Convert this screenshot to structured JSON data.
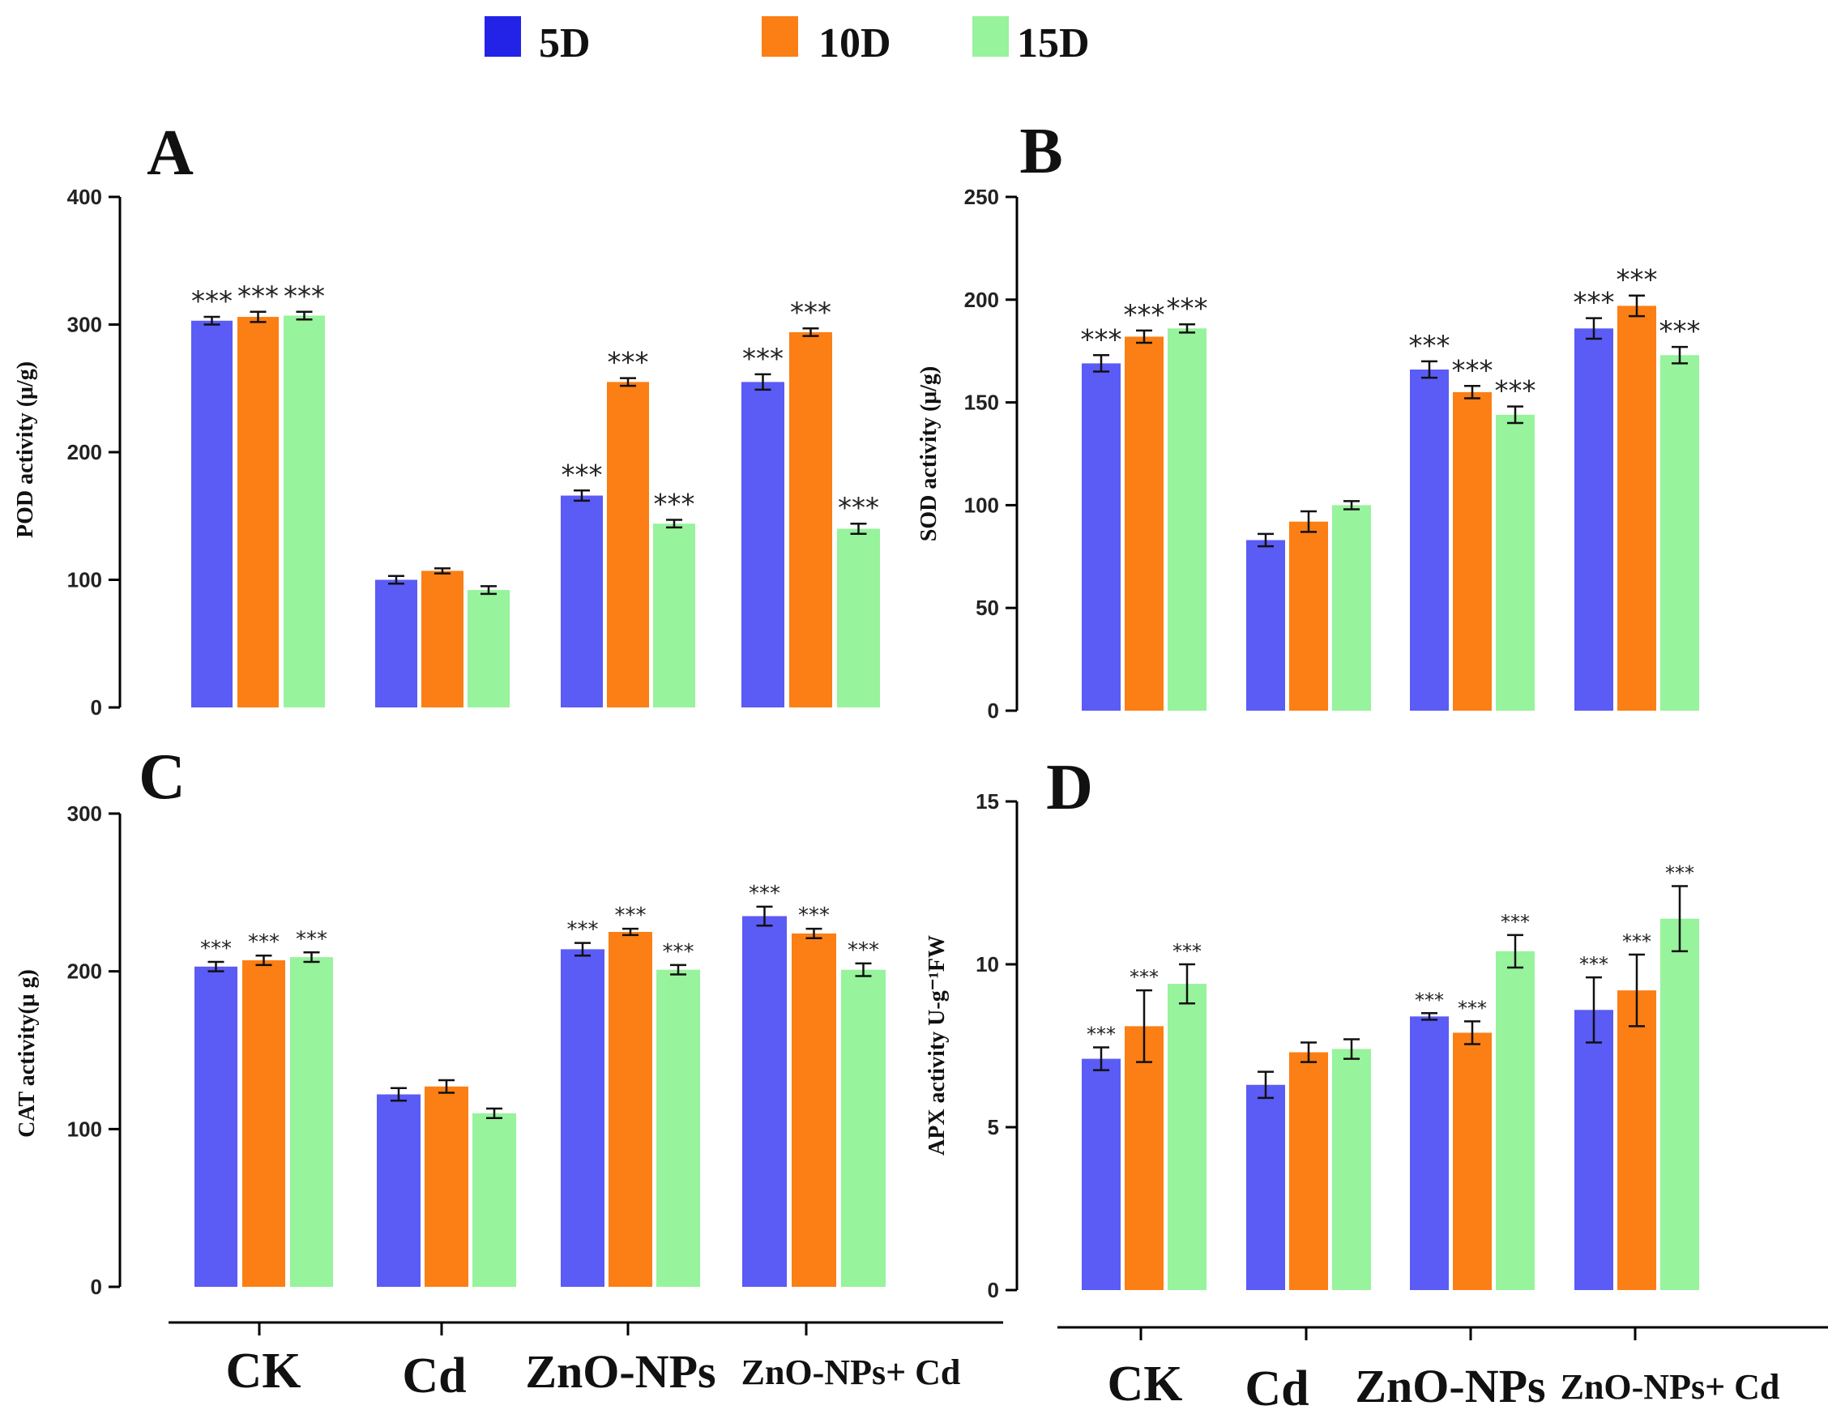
{
  "colors": {
    "5D": "#5b5bf5",
    "10D": "#fb7f14",
    "15D": "#97f39c",
    "legend_5D": "#2323e8",
    "legend_10D": "#fb7f14",
    "legend_15D": "#97f39c"
  },
  "legend": [
    {
      "label": "5D",
      "color": "#2323e8"
    },
    {
      "label": "10D",
      "color": "#fb7f14"
    },
    {
      "label": "15D",
      "color": "#97f39c"
    }
  ],
  "x_labels": {
    "left": [
      "CK",
      "Cd",
      "ZnO-NPs",
      "ZnO-NPs+ Cd"
    ],
    "right": [
      "CK",
      "Cd",
      "ZnO-NPs",
      "ZnO-NPs+ Cd"
    ]
  },
  "chart_data": [
    {
      "id": "A",
      "type": "bar",
      "panel_label": "A",
      "ylabel": "POD activity (μ/g)",
      "ylim": [
        0,
        400
      ],
      "yticks": [
        0,
        100,
        200,
        300,
        400
      ],
      "tick_labels": [
        "0",
        "100",
        "200",
        "300",
        "400"
      ],
      "categories": [
        "CK",
        "Cd",
        "ZnO-NPs",
        "ZnO-NPs+ Cd"
      ],
      "series": [
        {
          "name": "5D",
          "values": [
            303,
            100,
            166,
            255
          ],
          "errors": [
            3,
            3,
            4,
            6
          ],
          "sig": [
            "***",
            "",
            "***",
            "***"
          ]
        },
        {
          "name": "10D",
          "values": [
            306,
            107,
            255,
            294
          ],
          "errors": [
            4,
            2,
            3,
            3
          ],
          "sig": [
            "***",
            "",
            "***",
            "***"
          ]
        },
        {
          "name": "15D",
          "values": [
            307,
            92,
            144,
            140
          ],
          "errors": [
            3,
            3,
            3,
            4
          ],
          "sig": [
            "***",
            "",
            "***",
            "***"
          ]
        }
      ]
    },
    {
      "id": "B",
      "type": "bar",
      "panel_label": "B",
      "ylabel": "SOD activity (μ/g)",
      "ylim": [
        0,
        250
      ],
      "yticks": [
        0,
        50,
        100,
        150,
        200,
        250
      ],
      "tick_labels": [
        "0",
        "50",
        "100",
        "150",
        "200",
        "250"
      ],
      "categories": [
        "CK",
        "Cd",
        "ZnO-NPs",
        "ZnO-NPs+ Cd"
      ],
      "series": [
        {
          "name": "5D",
          "values": [
            169,
            83,
            166,
            186
          ],
          "errors": [
            4,
            3,
            4,
            5
          ],
          "sig": [
            "***",
            "",
            "***",
            "***"
          ]
        },
        {
          "name": "10D",
          "values": [
            182,
            92,
            155,
            197
          ],
          "errors": [
            3,
            5,
            3,
            5
          ],
          "sig": [
            "***",
            "",
            "***",
            "***"
          ]
        },
        {
          "name": "15D",
          "values": [
            186,
            100,
            144,
            173
          ],
          "errors": [
            2,
            2,
            4,
            4
          ],
          "sig": [
            "***",
            "",
            "***",
            "***"
          ]
        }
      ]
    },
    {
      "id": "C",
      "type": "bar",
      "panel_label": "C",
      "ylabel": "CAT activity(μ g)",
      "ylim": [
        0,
        300
      ],
      "yticks": [
        0,
        100,
        200,
        300
      ],
      "tick_labels": [
        "0",
        "100",
        "200",
        "300"
      ],
      "categories": [
        "CK",
        "Cd",
        "ZnO-NPs",
        "ZnO-NPs+ Cd"
      ],
      "series": [
        {
          "name": "5D",
          "values": [
            203,
            122,
            214,
            235
          ],
          "errors": [
            3,
            4,
            4,
            6
          ],
          "sig": [
            "***",
            "",
            "***",
            "***"
          ]
        },
        {
          "name": "10D",
          "values": [
            207,
            127,
            225,
            224
          ],
          "errors": [
            3,
            4,
            2,
            3
          ],
          "sig": [
            "***",
            "",
            "***",
            "***"
          ]
        },
        {
          "name": "15D",
          "values": [
            209,
            110,
            201,
            201
          ],
          "errors": [
            3,
            3,
            3,
            4
          ],
          "sig": [
            "***",
            "",
            "***",
            "***"
          ]
        }
      ]
    },
    {
      "id": "D",
      "type": "bar",
      "panel_label": "D",
      "ylabel": "APX activity U-g⁻¹FW",
      "ylim": [
        0,
        15
      ],
      "yticks": [
        0,
        5,
        10,
        15
      ],
      "tick_labels": [
        "0",
        "5",
        "10",
        "15"
      ],
      "categories": [
        "CK",
        "Cd",
        "ZnO-NPs",
        "ZnO-NPs+ Cd"
      ],
      "series": [
        {
          "name": "5D",
          "values": [
            7.1,
            6.3,
            8.4,
            8.6
          ],
          "errors": [
            0.35,
            0.4,
            0.1,
            1.0
          ],
          "sig": [
            "***",
            "",
            "***",
            "***"
          ]
        },
        {
          "name": "10D",
          "values": [
            8.1,
            7.3,
            7.9,
            9.2
          ],
          "errors": [
            1.1,
            0.3,
            0.35,
            1.1
          ],
          "sig": [
            "***",
            "",
            "***",
            "***"
          ]
        },
        {
          "name": "15D",
          "values": [
            9.4,
            7.4,
            10.4,
            11.4
          ],
          "errors": [
            0.6,
            0.3,
            0.5,
            1.0
          ],
          "sig": [
            "***",
            "",
            "***",
            "***"
          ]
        }
      ]
    }
  ]
}
